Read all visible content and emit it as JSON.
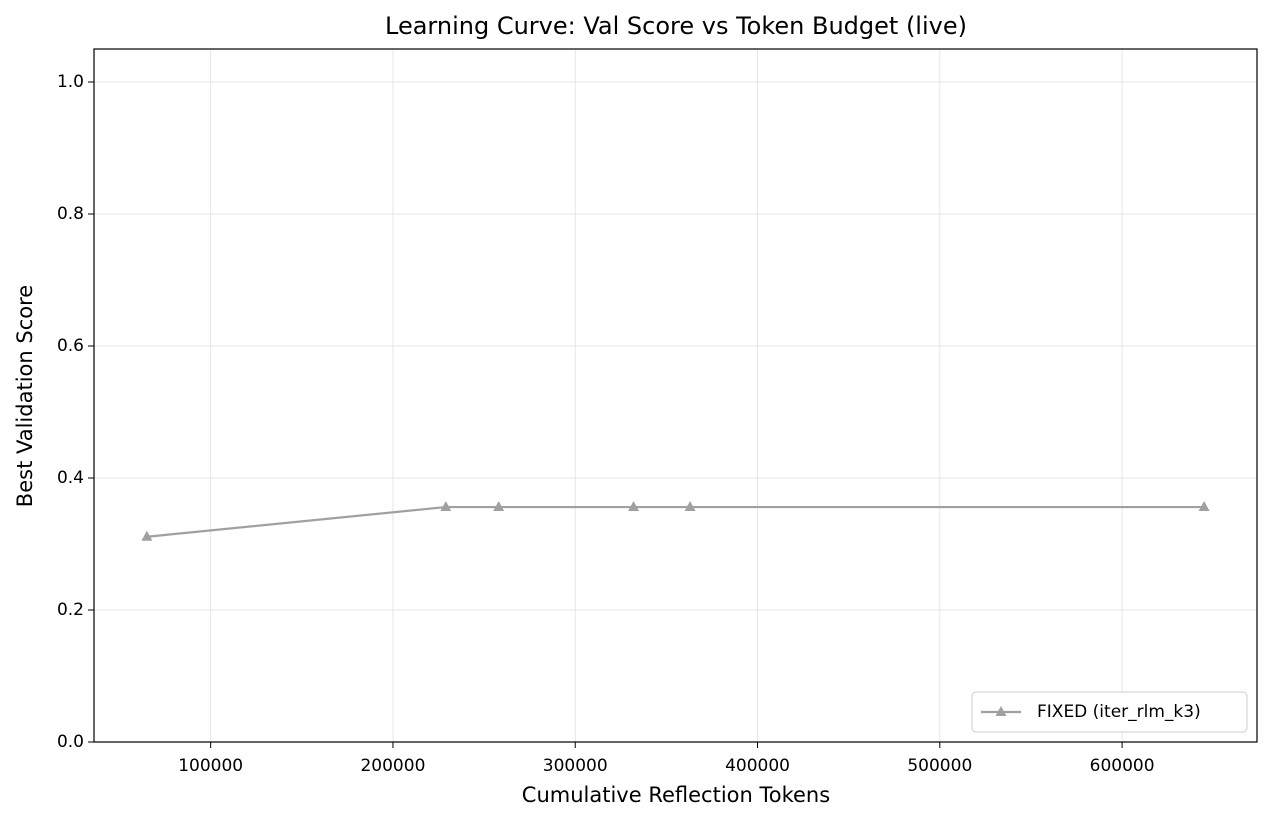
{
  "chart_data": {
    "type": "line",
    "title": "Learning Curve: Val Score vs Token Budget (live)",
    "x_label": "Cumulative Reflection Tokens",
    "y_label": "Best Validation Score",
    "x": [
      65000,
      229000,
      258000,
      332000,
      363000,
      645000
    ],
    "series": [
      {
        "name": "FIXED (iter_rlm_k3)",
        "color": "#a0a0a0",
        "marker": "triangle",
        "values": [
          0.311,
          0.356,
          0.356,
          0.356,
          0.356,
          0.356
        ]
      }
    ],
    "xlim": [
      36000,
      674000
    ],
    "xticks": [
      100000,
      200000,
      300000,
      400000,
      500000,
      600000
    ],
    "ylim": [
      0,
      1.05
    ],
    "yticks": [
      {
        "value": 0,
        "label": "0.0"
      },
      0.2,
      0.4,
      0.6,
      0.8,
      {
        "value": 1,
        "label": "1.0"
      }
    ],
    "grid": true,
    "legend": "lower right"
  }
}
